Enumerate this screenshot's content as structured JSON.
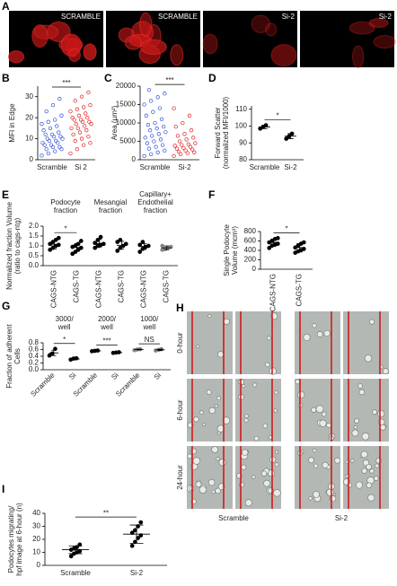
{
  "image_panels": {
    "A": {
      "label": "A",
      "captions": [
        "SCRAMBLE",
        "SCRAMBLE",
        "Si-2",
        "Si-2"
      ]
    },
    "H": {
      "label": "H",
      "rows": [
        "0-hour",
        "6-hour",
        "24-hour"
      ],
      "columns": [
        "Scramble",
        "Si-2"
      ]
    }
  },
  "chart_data": [
    {
      "type": "strip",
      "label": "B",
      "ylabel": [
        "MFI in Edge"
      ],
      "ylim": [
        0,
        35
      ],
      "yticks": [
        0,
        10,
        20,
        30
      ],
      "categories": [
        "Scramble",
        "Si 2"
      ],
      "colors": [
        "#3150d8",
        "#e02020"
      ],
      "open_markers": true,
      "points": [
        [
          2,
          3,
          4,
          5,
          5,
          6,
          6,
          7,
          7,
          8,
          8,
          9,
          9,
          10,
          10,
          11,
          11,
          12,
          12,
          13,
          14,
          15,
          16,
          17,
          18,
          19,
          21,
          23,
          26,
          29
        ],
        [
          3,
          5,
          7,
          8,
          9,
          10,
          11,
          12,
          13,
          14,
          15,
          15,
          16,
          17,
          17,
          18,
          18,
          19,
          19,
          20,
          20,
          21,
          22,
          23,
          24,
          25,
          26,
          28,
          30,
          32
        ]
      ],
      "significance": [
        "***"
      ]
    },
    {
      "type": "strip",
      "label": "C",
      "ylabel": [
        "Area (µm²)"
      ],
      "ylim": [
        0,
        20000
      ],
      "yticks": [
        0,
        5000,
        10000,
        15000,
        20000
      ],
      "categories": [
        "Scramble",
        "Si-2"
      ],
      "colors": [
        "#3150d8",
        "#e02020"
      ],
      "open_markers": true,
      "points": [
        [
          1000,
          1500,
          2000,
          2500,
          3000,
          3500,
          4000,
          4500,
          5000,
          5500,
          6000,
          6500,
          7000,
          7500,
          8000,
          8500,
          9000,
          9500,
          10000,
          11000,
          12000,
          13000,
          14000,
          15000,
          16000,
          17000,
          18000,
          19000
        ],
        [
          1000,
          1500,
          1800,
          2000,
          2200,
          2500,
          2800,
          3000,
          3200,
          3500,
          3800,
          4000,
          4200,
          4500,
          5000,
          5500,
          6000,
          6500,
          7000,
          8000,
          9000,
          10000,
          12000,
          14000
        ]
      ],
      "significance": [
        "***"
      ]
    },
    {
      "type": "strip",
      "label": "D",
      "ylabel": [
        "Forward Scatter",
        "(normalized MFI/1000)"
      ],
      "ylim": [
        80,
        112
      ],
      "yticks": [
        80,
        90,
        100,
        110
      ],
      "categories": [
        "Scramble",
        "Si-2"
      ],
      "colors": [
        "#000000",
        "#000000"
      ],
      "open_markers": false,
      "points": [
        [
          98.5,
          99.5,
          100.5
        ],
        [
          92.5,
          94,
          95.5
        ]
      ],
      "mean": [
        99.5,
        94
      ],
      "sd": [
        1,
        1.5
      ],
      "significance": [
        "*"
      ]
    },
    {
      "type": "strip",
      "label": "E",
      "ylabel": [
        "Normalized fraction Volume",
        "(ratio to cags-ntg)"
      ],
      "ylim": [
        0,
        2
      ],
      "yticks": [
        {
          "value": 0,
          "label": "0.0"
        },
        {
          "value": 0.5,
          "label": "0.5"
        },
        {
          "value": 1,
          "label": "1.0"
        },
        {
          "value": 1.5,
          "label": "1.5"
        },
        {
          "value": 2,
          "label": "2.0"
        }
      ],
      "groups": [
        [
          "Podocyte",
          "fraction"
        ],
        [
          "Mesangial",
          "fraction"
        ],
        [
          "Capillary+",
          "Endothelial",
          "fraction"
        ]
      ],
      "categories": [
        "CAGS-NTG",
        "CAGS-TG",
        "CAGS-NTG",
        "CAGS-TG",
        "CAGS-NTG",
        "CAGS-TG"
      ],
      "colors": [
        "#000000",
        "#000000",
        "#000000",
        "#000000",
        "#000000",
        "#888888"
      ],
      "open_markers": false,
      "points": [
        [
          0.8,
          0.9,
          1.0,
          1.05,
          1.1,
          1.2,
          1.3,
          1.4
        ],
        [
          0.6,
          0.7,
          0.8,
          0.9,
          0.95,
          1.0,
          1.1,
          1.25
        ],
        [
          0.9,
          1.0,
          1.05,
          1.1,
          1.15,
          1.3,
          1.45
        ],
        [
          0.75,
          0.9,
          1.0,
          1.1,
          1.2,
          1.3
        ],
        [
          0.7,
          0.85,
          0.95,
          1.0,
          1.05,
          1.2
        ],
        [
          0.8,
          0.85,
          0.9,
          0.95,
          1.0
        ]
      ],
      "mean": [
        1.05,
        0.92,
        1.12,
        1.03,
        0.97,
        0.9
      ],
      "sd": [
        0.2,
        0.2,
        0.2,
        0.2,
        0.15,
        0.1
      ],
      "significance": [
        "*",
        null,
        null
      ]
    },
    {
      "type": "strip",
      "label": "F",
      "ylabel": [
        "Single Podocyte",
        "Volume (mcm³)"
      ],
      "ylim": [
        0,
        800
      ],
      "yticks": [
        0,
        200,
        400,
        600,
        800
      ],
      "categories": [
        "CAGS-NTG",
        "CAGS-TG"
      ],
      "colors": [
        "#000000",
        "#000000"
      ],
      "open_markers": false,
      "points": [
        [
          450,
          500,
          520,
          540,
          570,
          600,
          640,
          660
        ],
        [
          350,
          380,
          400,
          430,
          460,
          500,
          540,
          570
        ]
      ],
      "mean": [
        570,
        460
      ],
      "sd": [
        70,
        85
      ],
      "significance": [
        "*"
      ]
    },
    {
      "type": "strip",
      "label": "G",
      "ylabel": [
        "Fraction of adherent",
        "Cells"
      ],
      "ylim": [
        0,
        0.8
      ],
      "yticks": [
        {
          "value": 0,
          "label": "0.0"
        },
        {
          "value": 0.2,
          "label": "0.2"
        },
        {
          "value": 0.4,
          "label": "0.4"
        },
        {
          "value": 0.6,
          "label": "0.6"
        },
        {
          "value": 0.8,
          "label": "0.8"
        }
      ],
      "groups": [
        [
          "3000/",
          "well"
        ],
        [
          "2000/",
          "well"
        ],
        [
          "1000/",
          "well"
        ]
      ],
      "categories": [
        "Scramble",
        "Si",
        "Scramble",
        "Si",
        "Scramble",
        "Si"
      ],
      "colors": [
        "#000000",
        "#000000",
        "#000000",
        "#000000",
        "#888888",
        "#888888"
      ],
      "open_markers": false,
      "points": [
        [
          0.42,
          0.48,
          0.62
        ],
        [
          0.3,
          0.33,
          0.34
        ],
        [
          0.55,
          0.56,
          0.57
        ],
        [
          0.5,
          0.51,
          0.52
        ],
        [
          0.58,
          0.6,
          0.61
        ],
        [
          0.57,
          0.59,
          0.61
        ]
      ],
      "mean": [
        0.5,
        0.32,
        0.56,
        0.51,
        0.6,
        0.59
      ],
      "sd": [
        0.08,
        0.02,
        0.01,
        0.01,
        0.01,
        0.02
      ],
      "significance": [
        "*",
        "***",
        "NS"
      ]
    },
    {
      "type": "strip",
      "label": "I",
      "ylabel": [
        "Podocytes migrating/",
        "hpf image at 6-hour (n)"
      ],
      "ylim": [
        0,
        40
      ],
      "yticks": [
        0,
        10,
        20,
        30,
        40
      ],
      "categories": [
        "Scramble",
        "Si-2"
      ],
      "colors": [
        "#000000",
        "#000000"
      ],
      "open_markers": false,
      "points": [
        [
          7,
          9,
          10,
          11,
          12,
          13,
          14,
          16
        ],
        [
          15,
          18,
          21,
          23,
          25,
          27,
          30,
          33
        ]
      ],
      "mean": [
        12,
        24
      ],
      "sd": [
        3,
        7
      ],
      "significance": [
        "**"
      ]
    }
  ]
}
